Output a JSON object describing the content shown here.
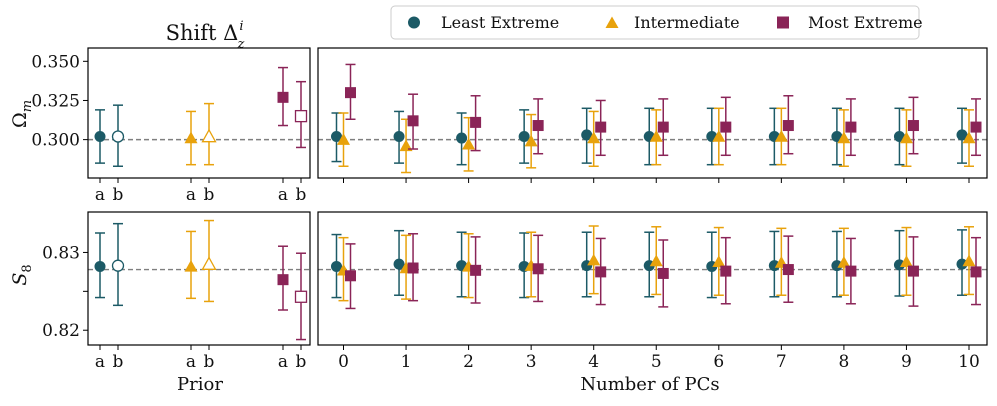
{
  "colors": {
    "least": "#1c5a66",
    "intermediate": "#e8a20c",
    "most": "#8a2457",
    "refline": "#7f7f7f"
  },
  "legend": {
    "least": "Least Extreme",
    "intermediate": "Intermediate",
    "most": "Most Extreme"
  },
  "chart_data": {
    "type": "scatter",
    "title": "Shift Δ",
    "title_sup": "i",
    "title_sub": "z",
    "markers": {
      "least": "circle",
      "intermediate": "triangle",
      "most": "square"
    },
    "x_prior_label": "Prior",
    "x_pcs_label": "Number of PCs",
    "prior_ticks": [
      "a",
      "b",
      "a",
      "b",
      "a",
      "b"
    ],
    "pc_ticks": [
      "0",
      "1",
      "2",
      "3",
      "4",
      "5",
      "6",
      "7",
      "8",
      "9",
      "10"
    ],
    "panels": [
      {
        "param": "omega",
        "ylabel": "Ω",
        "ylabel_sub": "m",
        "ylim": [
          0.2755,
          0.3585
        ],
        "yticks": [
          0.3,
          0.325,
          0.35
        ],
        "ytick_labels": [
          "0.300",
          "0.325",
          "0.350"
        ],
        "reference": 0.3,
        "prior": [
          {
            "series": "least",
            "variant": "a",
            "y": 0.302,
            "lo": 0.285,
            "hi": 0.319
          },
          {
            "series": "least",
            "variant": "b",
            "y": 0.302,
            "lo": 0.283,
            "hi": 0.322
          },
          {
            "series": "intermediate",
            "variant": "a",
            "y": 0.301,
            "lo": 0.284,
            "hi": 0.318
          },
          {
            "series": "intermediate",
            "variant": "b",
            "y": 0.302,
            "lo": 0.284,
            "hi": 0.323
          },
          {
            "series": "most",
            "variant": "a",
            "y": 0.327,
            "lo": 0.309,
            "hi": 0.346
          },
          {
            "series": "most",
            "variant": "b",
            "y": 0.315,
            "lo": 0.295,
            "hi": 0.337
          }
        ],
        "pcs": {
          "least": {
            "y": [
              0.302,
              0.302,
              0.301,
              0.302,
              0.303,
              0.302,
              0.302,
              0.302,
              0.302,
              0.302,
              0.303
            ],
            "lo": [
              0.286,
              0.285,
              0.284,
              0.285,
              0.285,
              0.284,
              0.284,
              0.284,
              0.284,
              0.284,
              0.285
            ],
            "hi": [
              0.317,
              0.318,
              0.317,
              0.319,
              0.32,
              0.32,
              0.32,
              0.32,
              0.32,
              0.32,
              0.32
            ]
          },
          "intermediate": {
            "y": [
              0.3,
              0.296,
              0.297,
              0.299,
              0.301,
              0.302,
              0.302,
              0.302,
              0.301,
              0.301,
              0.301
            ],
            "lo": [
              0.283,
              0.279,
              0.28,
              0.282,
              0.283,
              0.284,
              0.284,
              0.284,
              0.283,
              0.283,
              0.283
            ],
            "hi": [
              0.317,
              0.313,
              0.314,
              0.316,
              0.318,
              0.319,
              0.32,
              0.32,
              0.319,
              0.319,
              0.319
            ]
          },
          "most": {
            "y": [
              0.33,
              0.312,
              0.311,
              0.309,
              0.308,
              0.308,
              0.308,
              0.309,
              0.308,
              0.309,
              0.308
            ],
            "lo": [
              0.313,
              0.294,
              0.293,
              0.291,
              0.29,
              0.29,
              0.29,
              0.291,
              0.29,
              0.291,
              0.29
            ],
            "hi": [
              0.348,
              0.329,
              0.328,
              0.326,
              0.325,
              0.326,
              0.327,
              0.328,
              0.326,
              0.327,
              0.326
            ]
          }
        }
      },
      {
        "param": "s8",
        "ylabel": "S",
        "ylabel_sub": "8",
        "ylim": [
          0.8181,
          0.8352
        ],
        "yticks": [
          0.82,
          0.825,
          0.83
        ],
        "ytick_labels": [
          "0.82",
          "",
          "0.83"
        ],
        "reference": 0.8278,
        "prior": [
          {
            "series": "least",
            "variant": "a",
            "y": 0.8282,
            "lo": 0.8242,
            "hi": 0.8325
          },
          {
            "series": "least",
            "variant": "b",
            "y": 0.8283,
            "lo": 0.8232,
            "hi": 0.8337
          },
          {
            "series": "intermediate",
            "variant": "a",
            "y": 0.8282,
            "lo": 0.8241,
            "hi": 0.8327
          },
          {
            "series": "intermediate",
            "variant": "b",
            "y": 0.8285,
            "lo": 0.8237,
            "hi": 0.8341
          },
          {
            "series": "most",
            "variant": "a",
            "y": 0.8265,
            "lo": 0.8226,
            "hi": 0.8308
          },
          {
            "series": "most",
            "variant": "b",
            "y": 0.8243,
            "lo": 0.8188,
            "hi": 0.8299
          }
        ],
        "pcs": {
          "least": {
            "y": [
              0.8282,
              0.8285,
              0.8283,
              0.8282,
              0.8283,
              0.8283,
              0.8282,
              0.8283,
              0.8283,
              0.8284,
              0.8285
            ],
            "lo": [
              0.8242,
              0.8245,
              0.8243,
              0.8242,
              0.8243,
              0.8243,
              0.8242,
              0.8243,
              0.8243,
              0.8244,
              0.8245
            ],
            "hi": [
              0.8323,
              0.8328,
              0.8326,
              0.8325,
              0.8326,
              0.8326,
              0.8326,
              0.8327,
              0.8327,
              0.8328,
              0.8329
            ]
          },
          "intermediate": {
            "y": [
              0.8277,
              0.828,
              0.8282,
              0.8283,
              0.829,
              0.8289,
              0.8288,
              0.8287,
              0.8287,
              0.8288,
              0.8289
            ],
            "lo": [
              0.8238,
              0.824,
              0.8242,
              0.8243,
              0.8247,
              0.8246,
              0.8245,
              0.8245,
              0.8245,
              0.8245,
              0.8246
            ],
            "hi": [
              0.8319,
              0.8322,
              0.8324,
              0.8326,
              0.8334,
              0.8333,
              0.8332,
              0.8331,
              0.8331,
              0.8332,
              0.8333
            ]
          },
          "most": {
            "y": [
              0.827,
              0.828,
              0.8277,
              0.8279,
              0.8275,
              0.8273,
              0.8276,
              0.8278,
              0.8276,
              0.8276,
              0.8275
            ],
            "lo": [
              0.8228,
              0.8238,
              0.8235,
              0.8237,
              0.8233,
              0.823,
              0.8234,
              0.8236,
              0.8234,
              0.8231,
              0.8233
            ],
            "hi": [
              0.8311,
              0.8324,
              0.832,
              0.8322,
              0.8318,
              0.8316,
              0.8319,
              0.8321,
              0.8318,
              0.832,
              0.8319
            ]
          }
        }
      }
    ]
  }
}
